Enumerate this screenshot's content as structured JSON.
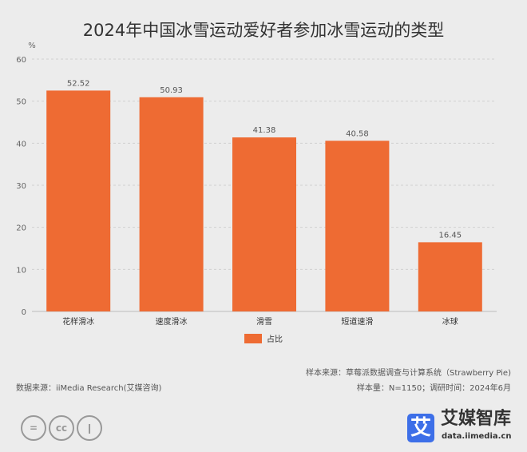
{
  "chart_data": {
    "type": "bar",
    "title": "2024年中国冰雪运动爱好者参加冰雪运动的类型",
    "ylabel": "%",
    "ylim": [
      0,
      60
    ],
    "yticks": [
      0,
      10,
      20,
      30,
      40,
      50,
      60
    ],
    "categories": [
      "花样滑冰",
      "速度滑冰",
      "滑雪",
      "短道速滑",
      "冰球"
    ],
    "series": [
      {
        "name": "占比",
        "values": [
          52.52,
          50.93,
          41.38,
          40.58,
          16.45
        ]
      }
    ],
    "grid": true,
    "legend": "bottom",
    "bar_color": "#ee6b33"
  },
  "footer": {
    "source": "数据来源：iiMedia Research(艾媒咨询)",
    "sample_source": "样本来源：草莓派数据调查与计算系统（Strawberry Pie)",
    "sample_info": "样本量：N=1150；调研时间：2024年6月",
    "brand": "艾媒智库",
    "brand_logo": "艾",
    "url": "data.iimedia.cn",
    "license_icons": [
      "=",
      "cc",
      "person"
    ]
  }
}
